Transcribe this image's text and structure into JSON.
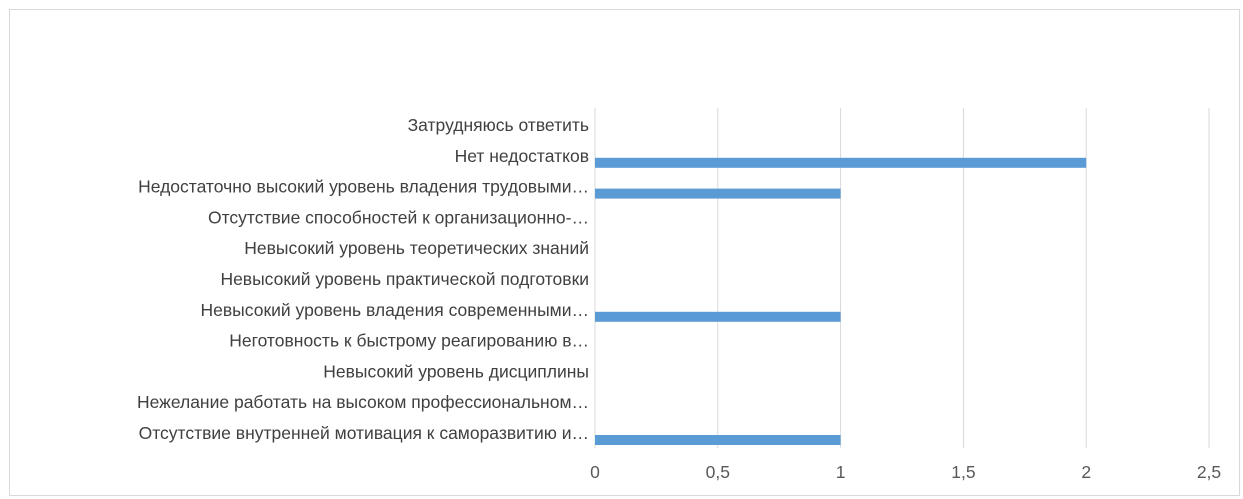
{
  "chart_data": {
    "type": "bar",
    "orientation": "horizontal",
    "title": "",
    "xlabel": "",
    "ylabel": "",
    "categories": [
      "Затрудняюсь ответить",
      "Нет недостатков",
      "Недостаточно высокий уровень владения трудовыми…",
      "Отсутствие способностей к организационно-…",
      "Невысокий уровень теоретических знаний",
      "Невысокий уровень практической подготовки",
      "Невысокий уровень владения современными…",
      "Неготовность к быстрому реагированию в…",
      "Невысокий уровень дисциплины",
      "Нежелание работать на высоком профессиональном…",
      "Отсутствие внутренней мотивация к саморазвитию и…"
    ],
    "values": [
      0,
      2,
      1,
      0,
      0,
      0,
      1,
      0,
      0,
      0,
      1
    ],
    "xlim": [
      0,
      2.5
    ],
    "ticks": [
      "0",
      "0,5",
      "1",
      "1,5",
      "2",
      "2,5"
    ],
    "tick_values": [
      0,
      0.5,
      1,
      1.5,
      2,
      2.5
    ],
    "bar_color": "#5b9bd5",
    "grid": true,
    "legend": "none"
  }
}
